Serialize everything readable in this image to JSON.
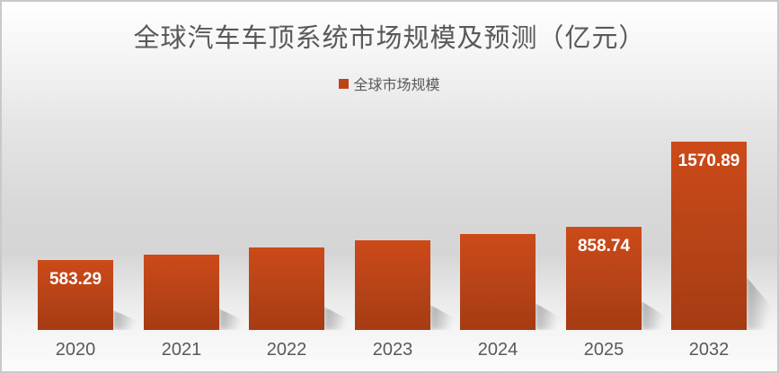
{
  "title": "全球汽车车顶系统市场规模及预测（亿元）",
  "legend": {
    "label": "全球市场规模",
    "marker_color": "#bc4617"
  },
  "colors": {
    "bar_gradient_top": "#cc4a18",
    "bar_gradient_bottom": "#a63b12",
    "title_text": "#595959",
    "axis_text": "#595959",
    "data_label_text": "#ffffff"
  },
  "chart_data": {
    "type": "bar",
    "title": "全球汽车车顶系统市场规模及预测（亿元）",
    "categories": [
      "2020",
      "2021",
      "2022",
      "2023",
      "2024",
      "2025",
      "2032"
    ],
    "series": [
      {
        "name": "全球市场规模",
        "values": [
          583.29,
          630,
          688,
          748,
          800,
          858.74,
          1570.89
        ]
      }
    ],
    "data_labels": [
      "583.29",
      "",
      "",
      "",
      "",
      "858.74",
      "1570.89"
    ],
    "xlabel": "",
    "ylabel": "",
    "ylim": [
      0,
      1650
    ],
    "grid": false,
    "y_axis_visible": false,
    "legend_position": "top-center"
  }
}
